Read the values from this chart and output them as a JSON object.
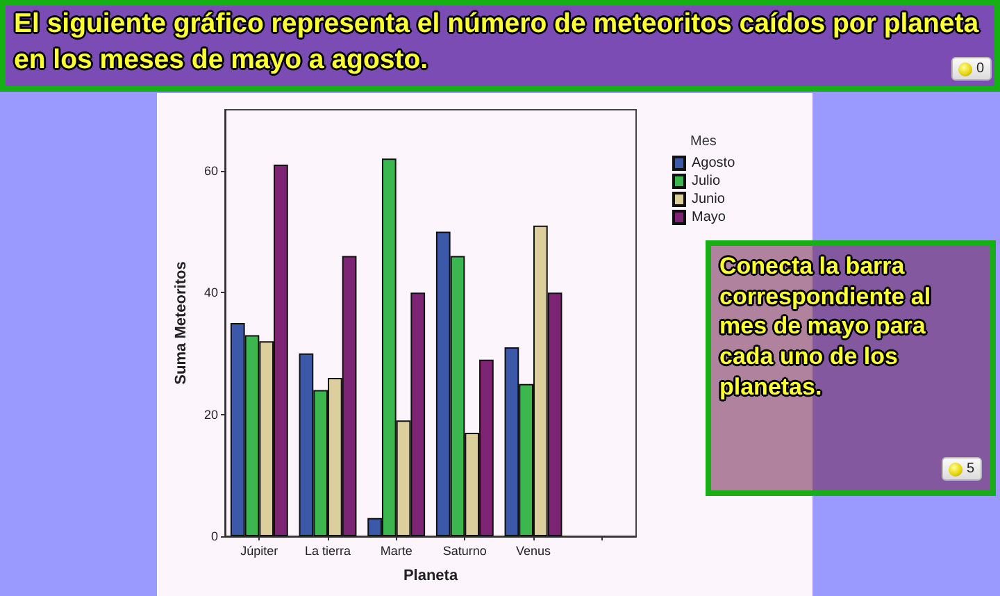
{
  "chart_data": {
    "type": "bar",
    "title": "El siguiente gráfico representa el número de meteoritos caídos por planeta en los meses de mayo a agosto.",
    "xlabel": "Planeta",
    "ylabel": "Suma Meteoritos",
    "legend_title": "Mes",
    "annotations": [
      "Conecta la barra correspondiente al mes de mayo para cada uno de los planetas.",
      "0",
      "5"
    ],
    "categories": [
      "Júpiter",
      "La tierra",
      "Marte",
      "Saturno",
      "Venus",
      null
    ],
    "series": [
      {
        "name": "Agosto",
        "color": "#3c58a8",
        "values": [
          35,
          30,
          3,
          50,
          31,
          null
        ]
      },
      {
        "name": "Julio",
        "color": "#3cb64e",
        "values": [
          33,
          24,
          62,
          46,
          25,
          null
        ]
      },
      {
        "name": "Junio",
        "color": "#dccf9c",
        "values": [
          32,
          26,
          19,
          17,
          51,
          null
        ]
      },
      {
        "name": "Mayo",
        "color": "#7e2474",
        "values": [
          61,
          46,
          40,
          29,
          40,
          null
        ]
      }
    ],
    "ylim": [
      0,
      70
    ],
    "yticks": [
      0,
      20,
      40,
      60
    ],
    "grid": false,
    "legend": "top right"
  }
}
